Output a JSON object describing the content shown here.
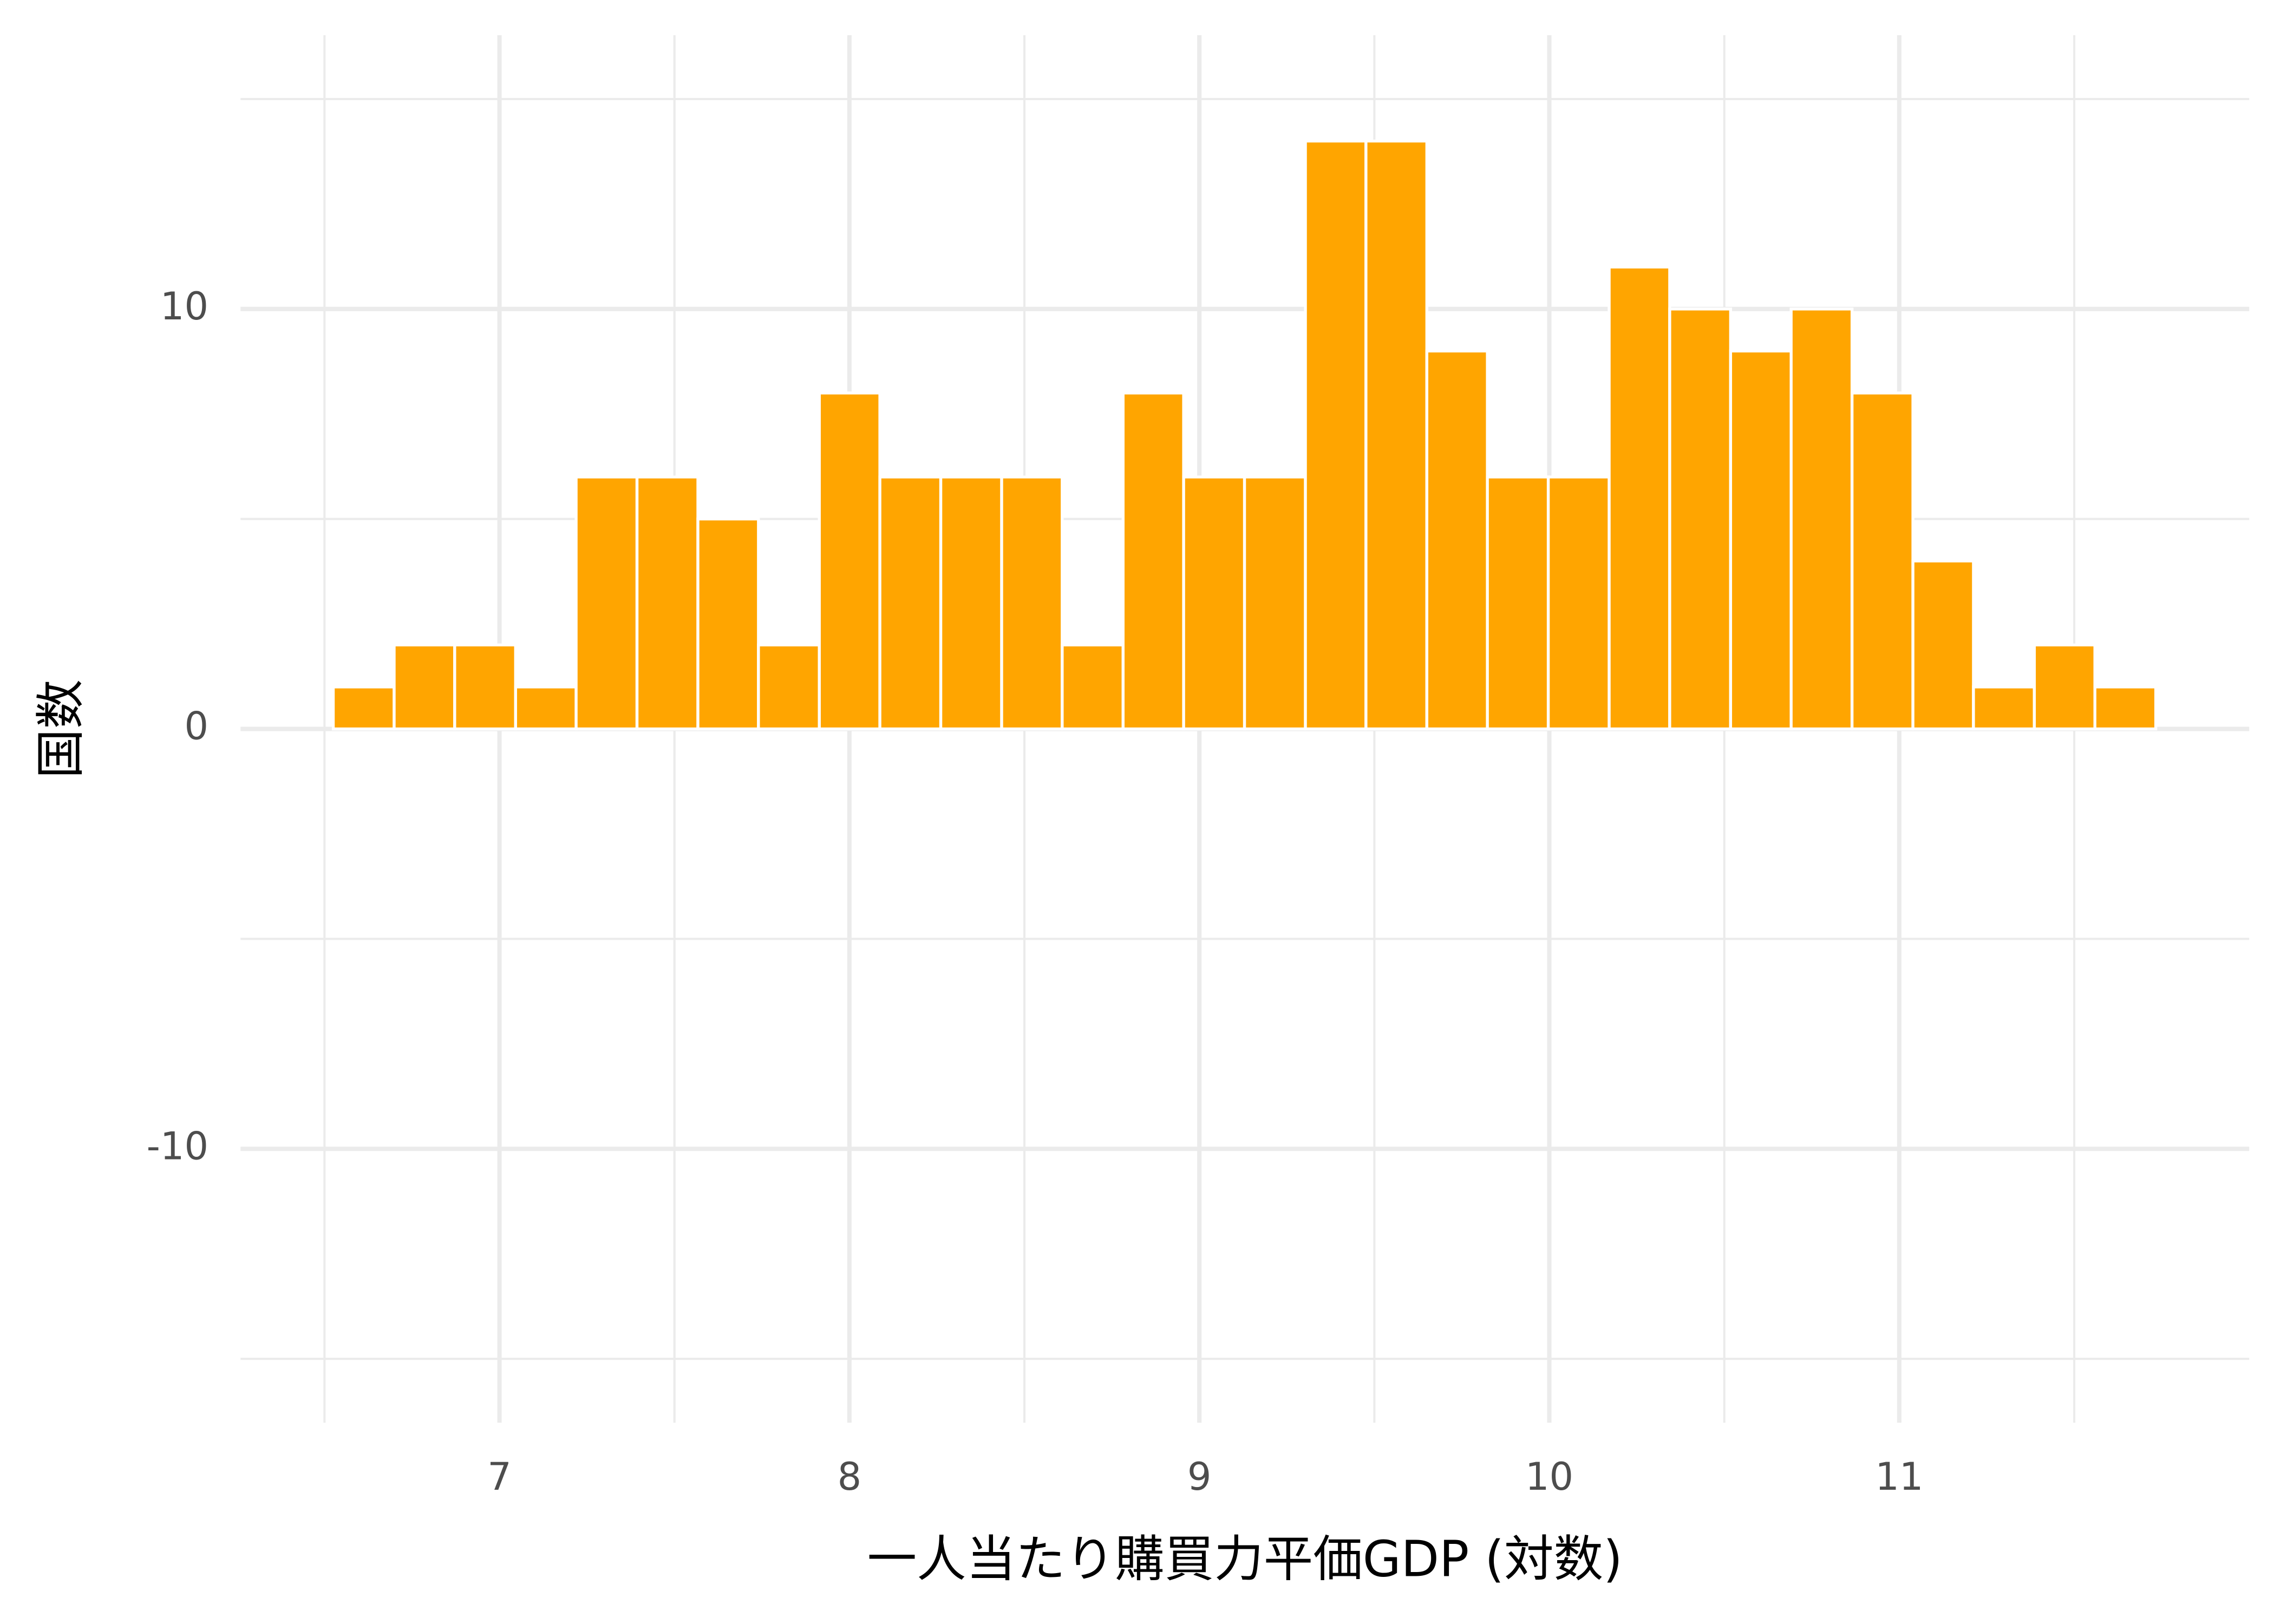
{
  "chart_data": {
    "type": "histogram",
    "x_label": "一人当たり購買力平価GDP (対数)",
    "y_label": "国数",
    "bins": [
      6.525,
      6.699,
      6.872,
      7.046,
      7.219,
      7.393,
      7.567,
      7.74,
      7.914,
      8.087,
      8.261,
      8.435,
      8.608,
      8.782,
      8.955,
      9.129,
      9.303,
      9.476,
      9.65,
      9.823,
      9.997,
      10.171,
      10.344,
      10.518,
      10.691,
      10.865,
      11.039,
      11.212,
      11.386,
      11.559,
      11.733
    ],
    "values": [
      1,
      2,
      2,
      1,
      6,
      6,
      5,
      2,
      8,
      6,
      6,
      6,
      2,
      8,
      6,
      6,
      14,
      14,
      9,
      6,
      6,
      11,
      10,
      9,
      10,
      8,
      4,
      1,
      2,
      1
    ],
    "color": "#ffa500",
    "xlim": [
      6.26,
      12.0
    ],
    "xticks": [
      7,
      8,
      9,
      10,
      11
    ],
    "xminor": [
      6.5,
      7.5,
      8.5,
      9.5,
      10.5,
      11.5
    ],
    "ylim": [
      -16,
      16
    ],
    "yticks": [
      -10,
      0,
      10
    ],
    "yminor": [
      -15,
      -5,
      5,
      15
    ],
    "grid": true
  }
}
